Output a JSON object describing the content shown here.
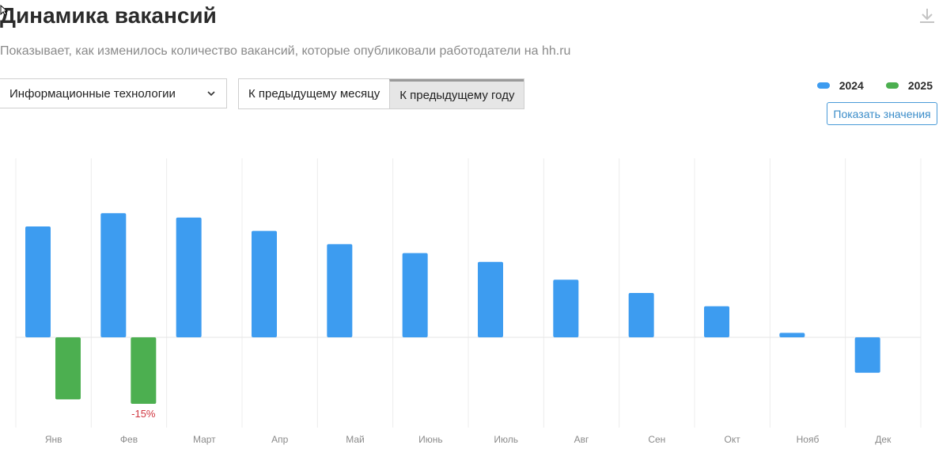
{
  "header": {
    "title": "Динамика вакансий",
    "subtitle": "Показывает, как изменилось количество вакансий, которые опубликовали работодатели на hh.ru"
  },
  "filters": {
    "category_select": {
      "value": "Информационные технологии"
    },
    "comparison_tabs": [
      {
        "label": "К предыдущему месяцу",
        "active": false
      },
      {
        "label": "К предыдущему году",
        "active": true
      }
    ]
  },
  "legend": {
    "items": [
      {
        "label": "2024",
        "color": "#3d9cf0"
      },
      {
        "label": "2025",
        "color": "#4caf50"
      }
    ]
  },
  "show_values_button": {
    "label": "Показать значения"
  },
  "chart_data": {
    "type": "bar",
    "categories": [
      "Янв",
      "Фев",
      "Март",
      "Апр",
      "Май",
      "Июнь",
      "Июль",
      "Авг",
      "Сен",
      "Окт",
      "Нояб",
      "Дек"
    ],
    "series": [
      {
        "name": "2024",
        "color": "#3d9cf0",
        "values": [
          25,
          28,
          27,
          24,
          21,
          19,
          17,
          13,
          10,
          7,
          1,
          -8
        ]
      },
      {
        "name": "2025",
        "color": "#4caf50",
        "values": [
          -14,
          -15,
          null,
          null,
          null,
          null,
          null,
          null,
          null,
          null,
          null,
          null
        ]
      }
    ],
    "annotations": [
      {
        "category": "Фев",
        "series": "2025",
        "text": "-15%"
      }
    ],
    "ylim": [
      -20,
      40
    ],
    "grid": "vertical",
    "legend_position": "top-right"
  }
}
